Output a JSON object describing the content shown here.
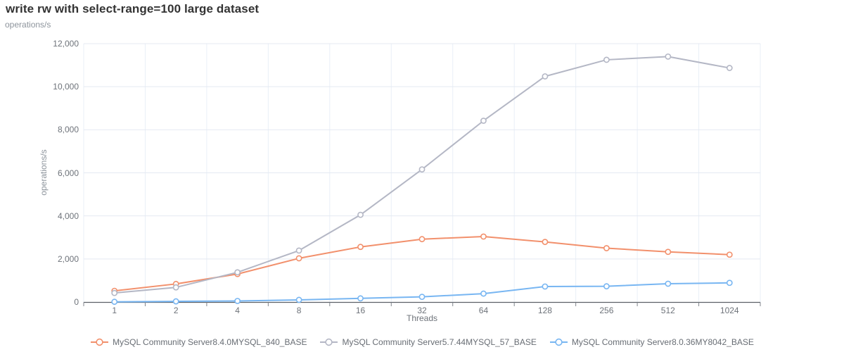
{
  "header": {
    "title": "write rw with select-range=100 large dataset",
    "units_label": "operations/s"
  },
  "chart_data": {
    "type": "line",
    "title": "write rw with select-range=100 large dataset",
    "xlabel": "Threads",
    "ylabel": "operations/s",
    "ylim": [
      0,
      12000
    ],
    "yticks": [
      0,
      2000,
      4000,
      6000,
      8000,
      10000,
      12000
    ],
    "ytick_labels": [
      "0",
      "2,000",
      "4,000",
      "6,000",
      "8,000",
      "10,000",
      "12,000"
    ],
    "categories": [
      "1",
      "2",
      "4",
      "8",
      "16",
      "32",
      "64",
      "128",
      "256",
      "512",
      "1024"
    ],
    "grid": true,
    "legend_position": "bottom",
    "marker": "open-circle",
    "series": [
      {
        "name": "MySQL Community Server8.4.0MYSQL_840_BASE",
        "color": "#f2906c",
        "values": [
          520,
          840,
          1300,
          2030,
          2560,
          2920,
          3040,
          2790,
          2500,
          2330,
          2200
        ]
      },
      {
        "name": "MySQL Community Server5.7.44MYSQL_57_BASE",
        "color": "#b4b7c5",
        "values": [
          420,
          680,
          1380,
          2390,
          4050,
          6160,
          8420,
          10480,
          11250,
          11400,
          10870
        ]
      },
      {
        "name": "MySQL Community Server8.0.36MY8042_BASE",
        "color": "#78b6f2",
        "values": [
          10,
          30,
          50,
          100,
          170,
          240,
          390,
          720,
          730,
          850,
          890
        ]
      }
    ]
  }
}
